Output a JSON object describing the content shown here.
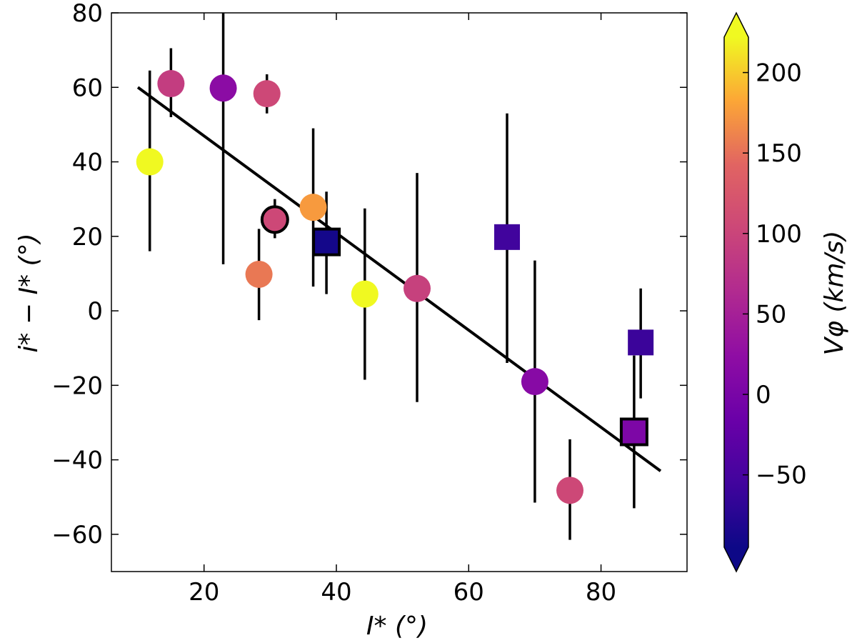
{
  "chart_data": {
    "type": "scatter",
    "title": "",
    "xlabel": "I* (°)",
    "ylabel": "i* − I* (°)",
    "xlim": [
      6,
      93
    ],
    "ylim": [
      -70,
      80
    ],
    "xticks": [
      20,
      40,
      60,
      80
    ],
    "yticks": [
      -60,
      -40,
      -20,
      0,
      20,
      40,
      60,
      80
    ],
    "xtick_labels": [
      "20",
      "40",
      "60",
      "80"
    ],
    "ytick_labels": [
      "−60",
      "−40",
      "−20",
      "0",
      "20",
      "40",
      "60",
      "80"
    ],
    "fit_line": {
      "x": [
        10,
        89
      ],
      "y": [
        60,
        -43
      ]
    },
    "colorbar": {
      "label": "Vφ (km/s)",
      "range": [
        -95,
        222
      ],
      "extend": "both",
      "ticks": [
        -50,
        0,
        50,
        100,
        150,
        200
      ],
      "tick_labels": [
        "−50",
        "0",
        "50",
        "100",
        "150",
        "200"
      ]
    },
    "colors": {
      "v_minus95": "#0d0887",
      "v_minus60": "#42039d",
      "v_0": "#9c179e",
      "v_50": "#cc4778",
      "v_100": "#e66c5c",
      "v_150": "#fca636",
      "v_220": "#f0f921"
    },
    "points": [
      {
        "x": 11.8,
        "y": 40,
        "yerr_low": 16,
        "yerr_high": 64.5,
        "v": 222,
        "marker": "circle",
        "outlined": false
      },
      {
        "x": 15,
        "y": 61,
        "yerr_low": 52,
        "yerr_high": 70.5,
        "v": 90,
        "marker": "circle",
        "outlined": false
      },
      {
        "x": 22.9,
        "y": 59.8,
        "yerr_low": 12.5,
        "yerr_high": 80,
        "v": 20,
        "marker": "circle",
        "outlined": false
      },
      {
        "x": 28.3,
        "y": 9.8,
        "yerr_low": -2.5,
        "yerr_high": 22,
        "v": 155,
        "marker": "circle",
        "outlined": false
      },
      {
        "x": 29.5,
        "y": 58.3,
        "yerr_low": 53,
        "yerr_high": 63.5,
        "v": 105,
        "marker": "circle",
        "outlined": false
      },
      {
        "x": 30.7,
        "y": 24.5,
        "yerr_low": 19.5,
        "yerr_high": 30,
        "v": 105,
        "marker": "circle",
        "outlined": true
      },
      {
        "x": 36.5,
        "y": 27.8,
        "yerr_low": 6.5,
        "yerr_high": 49,
        "v": 175,
        "marker": "circle",
        "outlined": false
      },
      {
        "x": 38.5,
        "y": 18.5,
        "yerr_low": 4.5,
        "yerr_high": 32,
        "v": -90,
        "marker": "square",
        "outlined": true
      },
      {
        "x": 44.3,
        "y": 4.5,
        "yerr_low": -18.5,
        "yerr_high": 27.5,
        "v": 222,
        "marker": "circle",
        "outlined": false
      },
      {
        "x": 52.2,
        "y": 6,
        "yerr_low": -24.5,
        "yerr_high": 37,
        "v": 95,
        "marker": "circle",
        "outlined": false
      },
      {
        "x": 65.8,
        "y": 19.8,
        "yerr_low": -14,
        "yerr_high": 53,
        "v": -55,
        "marker": "square",
        "outlined": false
      },
      {
        "x": 70,
        "y": -19,
        "yerr_low": -51.5,
        "yerr_high": 13.5,
        "v": 15,
        "marker": "circle",
        "outlined": false
      },
      {
        "x": 75.3,
        "y": -48.2,
        "yerr_low": -61.5,
        "yerr_high": -34.5,
        "v": 105,
        "marker": "circle",
        "outlined": false
      },
      {
        "x": 85,
        "y": -32.5,
        "yerr_low": -53,
        "yerr_high": -12,
        "v": 5,
        "marker": "square",
        "outlined": true
      },
      {
        "x": 86,
        "y": -8.5,
        "yerr_low": -23.5,
        "yerr_high": 6,
        "v": -60,
        "marker": "square",
        "outlined": false
      }
    ]
  }
}
